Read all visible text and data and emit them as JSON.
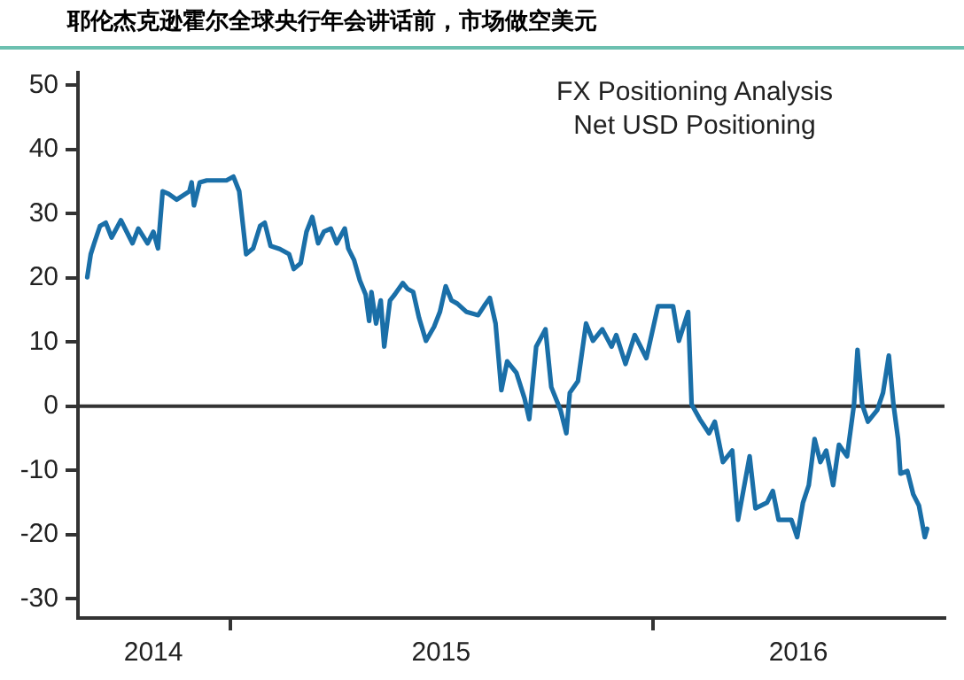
{
  "chart_data": {
    "type": "line",
    "title": "耶伦杰克逊霍尔全球央行年会讲话前，市场做空美元",
    "annotations": [
      "FX Positioning Analysis",
      "Net USD Positioning"
    ],
    "xlim": [
      "2014-08-23",
      "2016-09-08"
    ],
    "ylim": [
      -33,
      52
    ],
    "xticks": [
      {
        "value": "2014-10-27",
        "label": "2014"
      },
      {
        "value": "2015-01-01",
        "label": null
      },
      {
        "value": "2015-07-02",
        "label": "2015"
      },
      {
        "value": "2016-01-01",
        "label": null
      },
      {
        "value": "2016-05-05",
        "label": "2016"
      }
    ],
    "yticks": [
      -30,
      -20,
      -10,
      0,
      10,
      20,
      30,
      40,
      50
    ],
    "grid": false,
    "legend": false,
    "marker": "none",
    "line_style": "solid",
    "ref_lines": [
      {
        "axis": "y",
        "value": 0,
        "color": "#333333"
      }
    ],
    "series": [
      {
        "color": "#1a6fa8",
        "x": [
          "2014-08-31",
          "2014-09-03",
          "2014-09-06",
          "2014-09-11",
          "2014-09-16",
          "2014-09-21",
          "2014-09-29",
          "2014-10-04",
          "2014-10-09",
          "2014-10-14",
          "2014-10-22",
          "2014-10-27",
          "2014-10-31",
          "2014-11-04",
          "2014-11-09",
          "2014-11-16",
          "2014-11-27",
          "2014-11-29",
          "2014-12-01",
          "2014-12-06",
          "2014-12-12",
          "2014-12-29",
          "2015-01-04",
          "2015-01-09",
          "2015-01-15",
          "2015-01-21",
          "2015-01-27",
          "2015-01-31",
          "2015-02-05",
          "2015-02-13",
          "2015-02-21",
          "2015-02-25",
          "2015-03-03",
          "2015-03-08",
          "2015-03-13",
          "2015-03-18",
          "2015-03-23",
          "2015-03-29",
          "2015-04-03",
          "2015-04-10",
          "2015-04-13",
          "2015-04-18",
          "2015-04-23",
          "2015-04-28",
          "2015-05-01",
          "2015-05-03",
          "2015-05-07",
          "2015-05-11",
          "2015-05-14",
          "2015-05-19",
          "2015-05-23",
          "2015-05-30",
          "2015-06-03",
          "2015-06-08",
          "2015-06-13",
          "2015-06-19",
          "2015-06-26",
          "2015-07-01",
          "2015-07-06",
          "2015-07-11",
          "2015-07-16",
          "2015-07-24",
          "2015-08-03",
          "2015-08-08",
          "2015-08-13",
          "2015-08-18",
          "2015-08-23",
          "2015-08-28",
          "2015-09-05",
          "2015-09-12",
          "2015-09-16",
          "2015-09-22",
          "2015-09-30",
          "2015-10-05",
          "2015-10-13",
          "2015-10-18",
          "2015-10-21",
          "2015-10-28",
          "2015-11-04",
          "2015-11-10",
          "2015-11-18",
          "2015-11-26",
          "2015-11-30",
          "2015-12-08",
          "2015-12-16",
          "2015-12-26",
          "2016-01-05",
          "2016-01-18",
          "2016-01-23",
          "2016-01-31",
          "2016-02-03",
          "2016-02-10",
          "2016-02-18",
          "2016-02-23",
          "2016-03-01",
          "2016-03-09",
          "2016-03-14",
          "2016-03-24",
          "2016-03-29",
          "2016-04-08",
          "2016-04-13",
          "2016-04-18",
          "2016-04-29",
          "2016-05-04",
          "2016-05-09",
          "2016-05-14",
          "2016-05-19",
          "2016-05-24",
          "2016-05-29",
          "2016-06-04",
          "2016-06-09",
          "2016-06-16",
          "2016-06-22",
          "2016-06-25",
          "2016-06-29",
          "2016-07-04",
          "2016-07-12",
          "2016-07-17",
          "2016-07-22",
          "2016-07-26",
          "2016-07-30",
          "2016-08-01",
          "2016-08-07",
          "2016-08-12",
          "2016-08-17",
          "2016-08-22",
          "2016-08-24"
        ],
        "values": [
          20.1,
          23.7,
          25.4,
          28.1,
          28.6,
          26.3,
          29,
          27.2,
          25.4,
          27.7,
          25.4,
          27.2,
          24.6,
          33.5,
          33.1,
          32.2,
          33.5,
          34.9,
          31.3,
          34.9,
          35.2,
          35.2,
          35.8,
          33.5,
          23.7,
          24.6,
          28.1,
          28.6,
          25,
          24.5,
          23.7,
          21.4,
          22.3,
          27.2,
          29.5,
          25.4,
          27.2,
          27.7,
          25.4,
          27.7,
          24.6,
          22.8,
          19.6,
          17.4,
          13.3,
          17.8,
          12.9,
          16.5,
          9.3,
          16.5,
          17.4,
          19.2,
          18.3,
          17.8,
          13.8,
          10.2,
          12.4,
          14.7,
          18.7,
          16.5,
          16,
          14.7,
          14.2,
          15.6,
          16.9,
          12.9,
          2.5,
          7,
          5.2,
          1.2,
          -2,
          9.3,
          12,
          3,
          -0.6,
          -4.2,
          2.1,
          3.9,
          12.9,
          10.2,
          12,
          9.3,
          11.1,
          6.6,
          11.1,
          7.5,
          15.6,
          15.6,
          10.2,
          14.7,
          0.3,
          -2,
          -4.2,
          -2.4,
          -8.7,
          -6.9,
          -17.7,
          -7.8,
          -15.9,
          -15,
          -13.2,
          -17.7,
          -17.7,
          -20.4,
          -15,
          -12.3,
          -5.1,
          -8.7,
          -6.9,
          -12.3,
          -6,
          -7.8,
          0.3,
          8.8,
          0.3,
          -2.4,
          -0.6,
          2.1,
          7.9,
          0.3,
          -5.1,
          -10.5,
          -10.1,
          -13.7,
          -15.5,
          -20.4,
          -19.1
        ]
      }
    ]
  }
}
